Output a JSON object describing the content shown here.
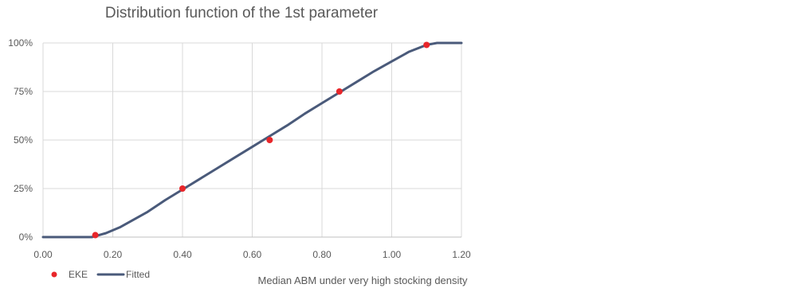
{
  "chart_data": {
    "type": "line",
    "title": "Distribution function of  the 1st parameter",
    "xlabel": "Median ABM under very high stocking density",
    "ylabel": "",
    "xlim": [
      0,
      1.2
    ],
    "ylim": [
      0,
      1
    ],
    "x_ticks": [
      0,
      0.2,
      0.4,
      0.6,
      0.8,
      1.0,
      1.2
    ],
    "x_tick_labels": [
      "0.00",
      "0.20",
      "0.40",
      "0.60",
      "0.80",
      "1.00",
      "1.20"
    ],
    "y_ticks": [
      0,
      0.25,
      0.5,
      0.75,
      1.0
    ],
    "y_tick_labels": [
      "0%",
      "25%",
      "50%",
      "75%",
      "100%"
    ],
    "grid": true,
    "legend_position": "bottom-left",
    "series": [
      {
        "name": "EKE",
        "type": "scatter",
        "color": "#e8262a",
        "points": [
          {
            "x": 0.15,
            "y": 0.01
          },
          {
            "x": 0.4,
            "y": 0.25
          },
          {
            "x": 0.65,
            "y": 0.5
          },
          {
            "x": 0.85,
            "y": 0.75
          },
          {
            "x": 1.1,
            "y": 0.99
          }
        ]
      },
      {
        "name": "Fitted",
        "type": "line",
        "color": "#4a5a7a",
        "points": [
          {
            "x": 0.0,
            "y": 0.0
          },
          {
            "x": 0.05,
            "y": 0.0
          },
          {
            "x": 0.1,
            "y": 0.0
          },
          {
            "x": 0.14,
            "y": 0.0
          },
          {
            "x": 0.18,
            "y": 0.02
          },
          {
            "x": 0.22,
            "y": 0.05
          },
          {
            "x": 0.26,
            "y": 0.09
          },
          {
            "x": 0.3,
            "y": 0.13
          },
          {
            "x": 0.35,
            "y": 0.19
          },
          {
            "x": 0.4,
            "y": 0.245
          },
          {
            "x": 0.45,
            "y": 0.3
          },
          {
            "x": 0.5,
            "y": 0.355
          },
          {
            "x": 0.55,
            "y": 0.41
          },
          {
            "x": 0.6,
            "y": 0.465
          },
          {
            "x": 0.65,
            "y": 0.52
          },
          {
            "x": 0.7,
            "y": 0.575
          },
          {
            "x": 0.75,
            "y": 0.635
          },
          {
            "x": 0.8,
            "y": 0.69
          },
          {
            "x": 0.85,
            "y": 0.745
          },
          {
            "x": 0.9,
            "y": 0.8
          },
          {
            "x": 0.95,
            "y": 0.855
          },
          {
            "x": 1.0,
            "y": 0.905
          },
          {
            "x": 1.05,
            "y": 0.955
          },
          {
            "x": 1.1,
            "y": 0.99
          },
          {
            "x": 1.13,
            "y": 1.0
          },
          {
            "x": 1.2,
            "y": 1.0
          }
        ]
      }
    ]
  }
}
